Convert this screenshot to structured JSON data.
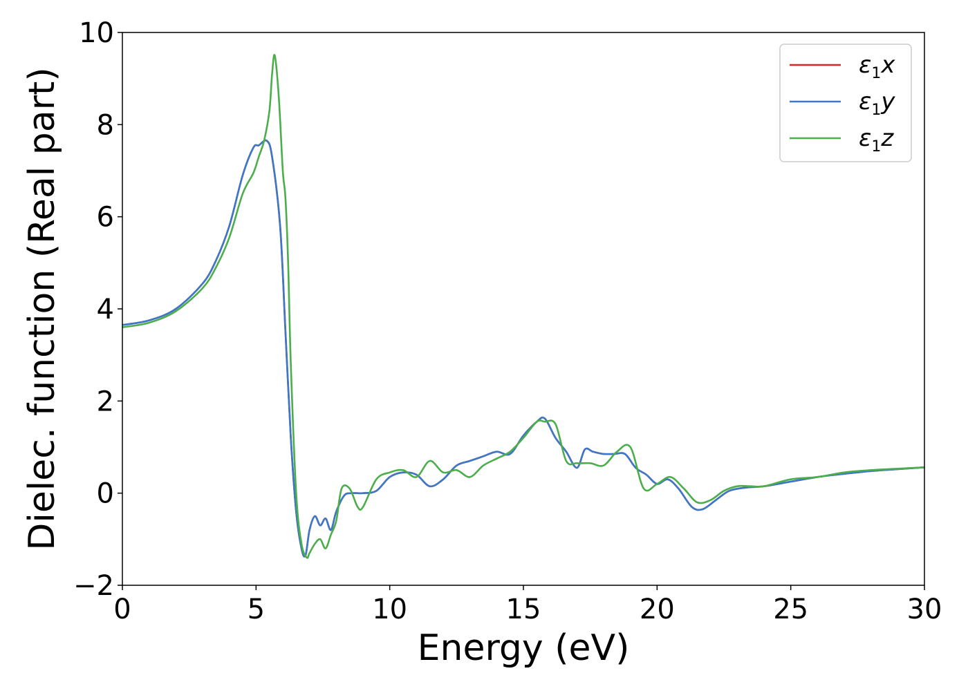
{
  "chart_data": {
    "type": "line",
    "xlabel": "Energy (eV)",
    "ylabel": "Dielec. function (Real part)",
    "xlim": [
      0,
      30
    ],
    "ylim": [
      -2,
      10
    ],
    "xticks": [
      0,
      5,
      10,
      15,
      20,
      25,
      30
    ],
    "yticks": [
      -2,
      0,
      2,
      4,
      6,
      8,
      10
    ],
    "xtick_labels": [
      "0",
      "5",
      "10",
      "15",
      "20",
      "25",
      "30"
    ],
    "ytick_labels": [
      "−2",
      "0",
      "2",
      "4",
      "6",
      "8",
      "10"
    ],
    "grid": false,
    "legend": {
      "location": "upper right",
      "entries": [
        {
          "prefix": "ε",
          "sub": "1",
          "suffix": "x",
          "color": "#d62728"
        },
        {
          "prefix": "ε",
          "sub": "1",
          "suffix": "y",
          "color": "#3a78c9"
        },
        {
          "prefix": "ε",
          "sub": "1",
          "suffix": "z",
          "color": "#4bae4b"
        }
      ]
    },
    "series": [
      {
        "name": "ε1x",
        "color": "#d62728",
        "x": [
          0,
          1,
          2,
          3,
          3.5,
          4,
          4.5,
          4.9,
          5.1,
          5.4,
          5.6,
          5.9,
          6.1,
          6.3,
          6.5,
          6.7,
          6.85,
          7.0,
          7.2,
          7.4,
          7.6,
          7.8,
          8.0,
          8.3,
          8.6,
          9.0,
          9.5,
          10.0,
          10.5,
          11.0,
          11.5,
          12.0,
          12.5,
          13.0,
          13.5,
          14.0,
          14.5,
          15.0,
          15.5,
          15.8,
          16.2,
          16.6,
          17.0,
          17.3,
          17.6,
          18.0,
          18.4,
          18.8,
          19.2,
          19.6,
          20.0,
          20.4,
          20.8,
          21.3,
          21.7,
          22.2,
          22.7,
          23.3,
          24.0,
          25.0,
          26.0,
          27.0,
          28.0,
          29.0,
          30.0
        ],
        "y": [
          3.65,
          3.75,
          4.0,
          4.55,
          5.05,
          5.8,
          6.9,
          7.5,
          7.55,
          7.65,
          7.3,
          5.8,
          3.5,
          1.2,
          -0.4,
          -1.2,
          -1.35,
          -0.8,
          -0.5,
          -0.7,
          -0.55,
          -0.8,
          -0.4,
          -0.05,
          0.0,
          0.0,
          0.05,
          0.35,
          0.45,
          0.4,
          0.15,
          0.3,
          0.6,
          0.7,
          0.8,
          0.9,
          0.85,
          1.25,
          1.55,
          1.62,
          1.2,
          0.9,
          0.55,
          0.95,
          0.9,
          0.85,
          0.85,
          0.85,
          0.55,
          0.4,
          0.2,
          0.3,
          0.1,
          -0.3,
          -0.35,
          -0.15,
          0.05,
          0.12,
          0.15,
          0.25,
          0.35,
          0.42,
          0.48,
          0.52,
          0.56
        ]
      },
      {
        "name": "ε1y",
        "color": "#3a78c9",
        "x": [
          0,
          1,
          2,
          3,
          3.5,
          4,
          4.5,
          4.9,
          5.1,
          5.4,
          5.6,
          5.9,
          6.1,
          6.3,
          6.5,
          6.7,
          6.85,
          7.0,
          7.2,
          7.4,
          7.6,
          7.8,
          8.0,
          8.3,
          8.6,
          9.0,
          9.5,
          10.0,
          10.5,
          11.0,
          11.5,
          12.0,
          12.5,
          13.0,
          13.5,
          14.0,
          14.5,
          15.0,
          15.5,
          15.8,
          16.2,
          16.6,
          17.0,
          17.3,
          17.6,
          18.0,
          18.4,
          18.8,
          19.2,
          19.6,
          20.0,
          20.4,
          20.8,
          21.3,
          21.7,
          22.2,
          22.7,
          23.3,
          24.0,
          25.0,
          26.0,
          27.0,
          28.0,
          29.0,
          30.0
        ],
        "y": [
          3.65,
          3.75,
          4.0,
          4.55,
          5.05,
          5.8,
          6.9,
          7.5,
          7.55,
          7.65,
          7.3,
          5.8,
          3.5,
          1.2,
          -0.4,
          -1.2,
          -1.35,
          -0.8,
          -0.5,
          -0.7,
          -0.55,
          -0.8,
          -0.4,
          -0.05,
          0.0,
          0.0,
          0.05,
          0.35,
          0.45,
          0.4,
          0.15,
          0.3,
          0.6,
          0.7,
          0.8,
          0.9,
          0.85,
          1.25,
          1.55,
          1.62,
          1.2,
          0.9,
          0.55,
          0.95,
          0.9,
          0.85,
          0.85,
          0.85,
          0.55,
          0.4,
          0.2,
          0.3,
          0.1,
          -0.3,
          -0.35,
          -0.15,
          0.05,
          0.12,
          0.15,
          0.25,
          0.35,
          0.42,
          0.48,
          0.52,
          0.56
        ]
      },
      {
        "name": "ε1z",
        "color": "#4bae4b",
        "x": [
          0,
          1,
          2,
          3,
          3.5,
          4,
          4.5,
          4.9,
          5.1,
          5.3,
          5.5,
          5.6,
          5.7,
          5.85,
          6.0,
          6.1,
          6.2,
          6.3,
          6.5,
          6.7,
          6.9,
          7.0,
          7.2,
          7.4,
          7.6,
          7.8,
          8.0,
          8.2,
          8.5,
          8.8,
          9.0,
          9.5,
          10.0,
          10.5,
          11.0,
          11.5,
          12.0,
          12.5,
          13.0,
          13.5,
          14.0,
          14.5,
          15.0,
          15.5,
          15.8,
          16.2,
          16.6,
          17.0,
          17.5,
          18.0,
          18.5,
          19.0,
          19.5,
          20.0,
          20.5,
          21.0,
          21.5,
          22.0,
          22.5,
          23.0,
          23.5,
          24.0,
          25.0,
          26.0,
          27.0,
          28.0,
          29.0,
          30.0
        ],
        "y": [
          3.6,
          3.7,
          3.95,
          4.45,
          4.9,
          5.55,
          6.5,
          6.95,
          7.3,
          7.65,
          8.3,
          9.1,
          9.5,
          8.6,
          7.0,
          6.4,
          5.0,
          2.8,
          0.0,
          -1.1,
          -1.4,
          -1.3,
          -1.1,
          -1.0,
          -1.2,
          -0.9,
          -0.6,
          0.1,
          0.1,
          -0.3,
          -0.3,
          0.3,
          0.45,
          0.5,
          0.35,
          0.7,
          0.45,
          0.5,
          0.35,
          0.6,
          0.75,
          0.9,
          1.2,
          1.55,
          1.55,
          1.5,
          0.7,
          0.65,
          0.65,
          0.6,
          0.9,
          1.0,
          0.1,
          0.2,
          0.35,
          0.1,
          -0.2,
          -0.15,
          0.05,
          0.15,
          0.15,
          0.15,
          0.3,
          0.35,
          0.45,
          0.5,
          0.53,
          0.56
        ]
      }
    ]
  }
}
